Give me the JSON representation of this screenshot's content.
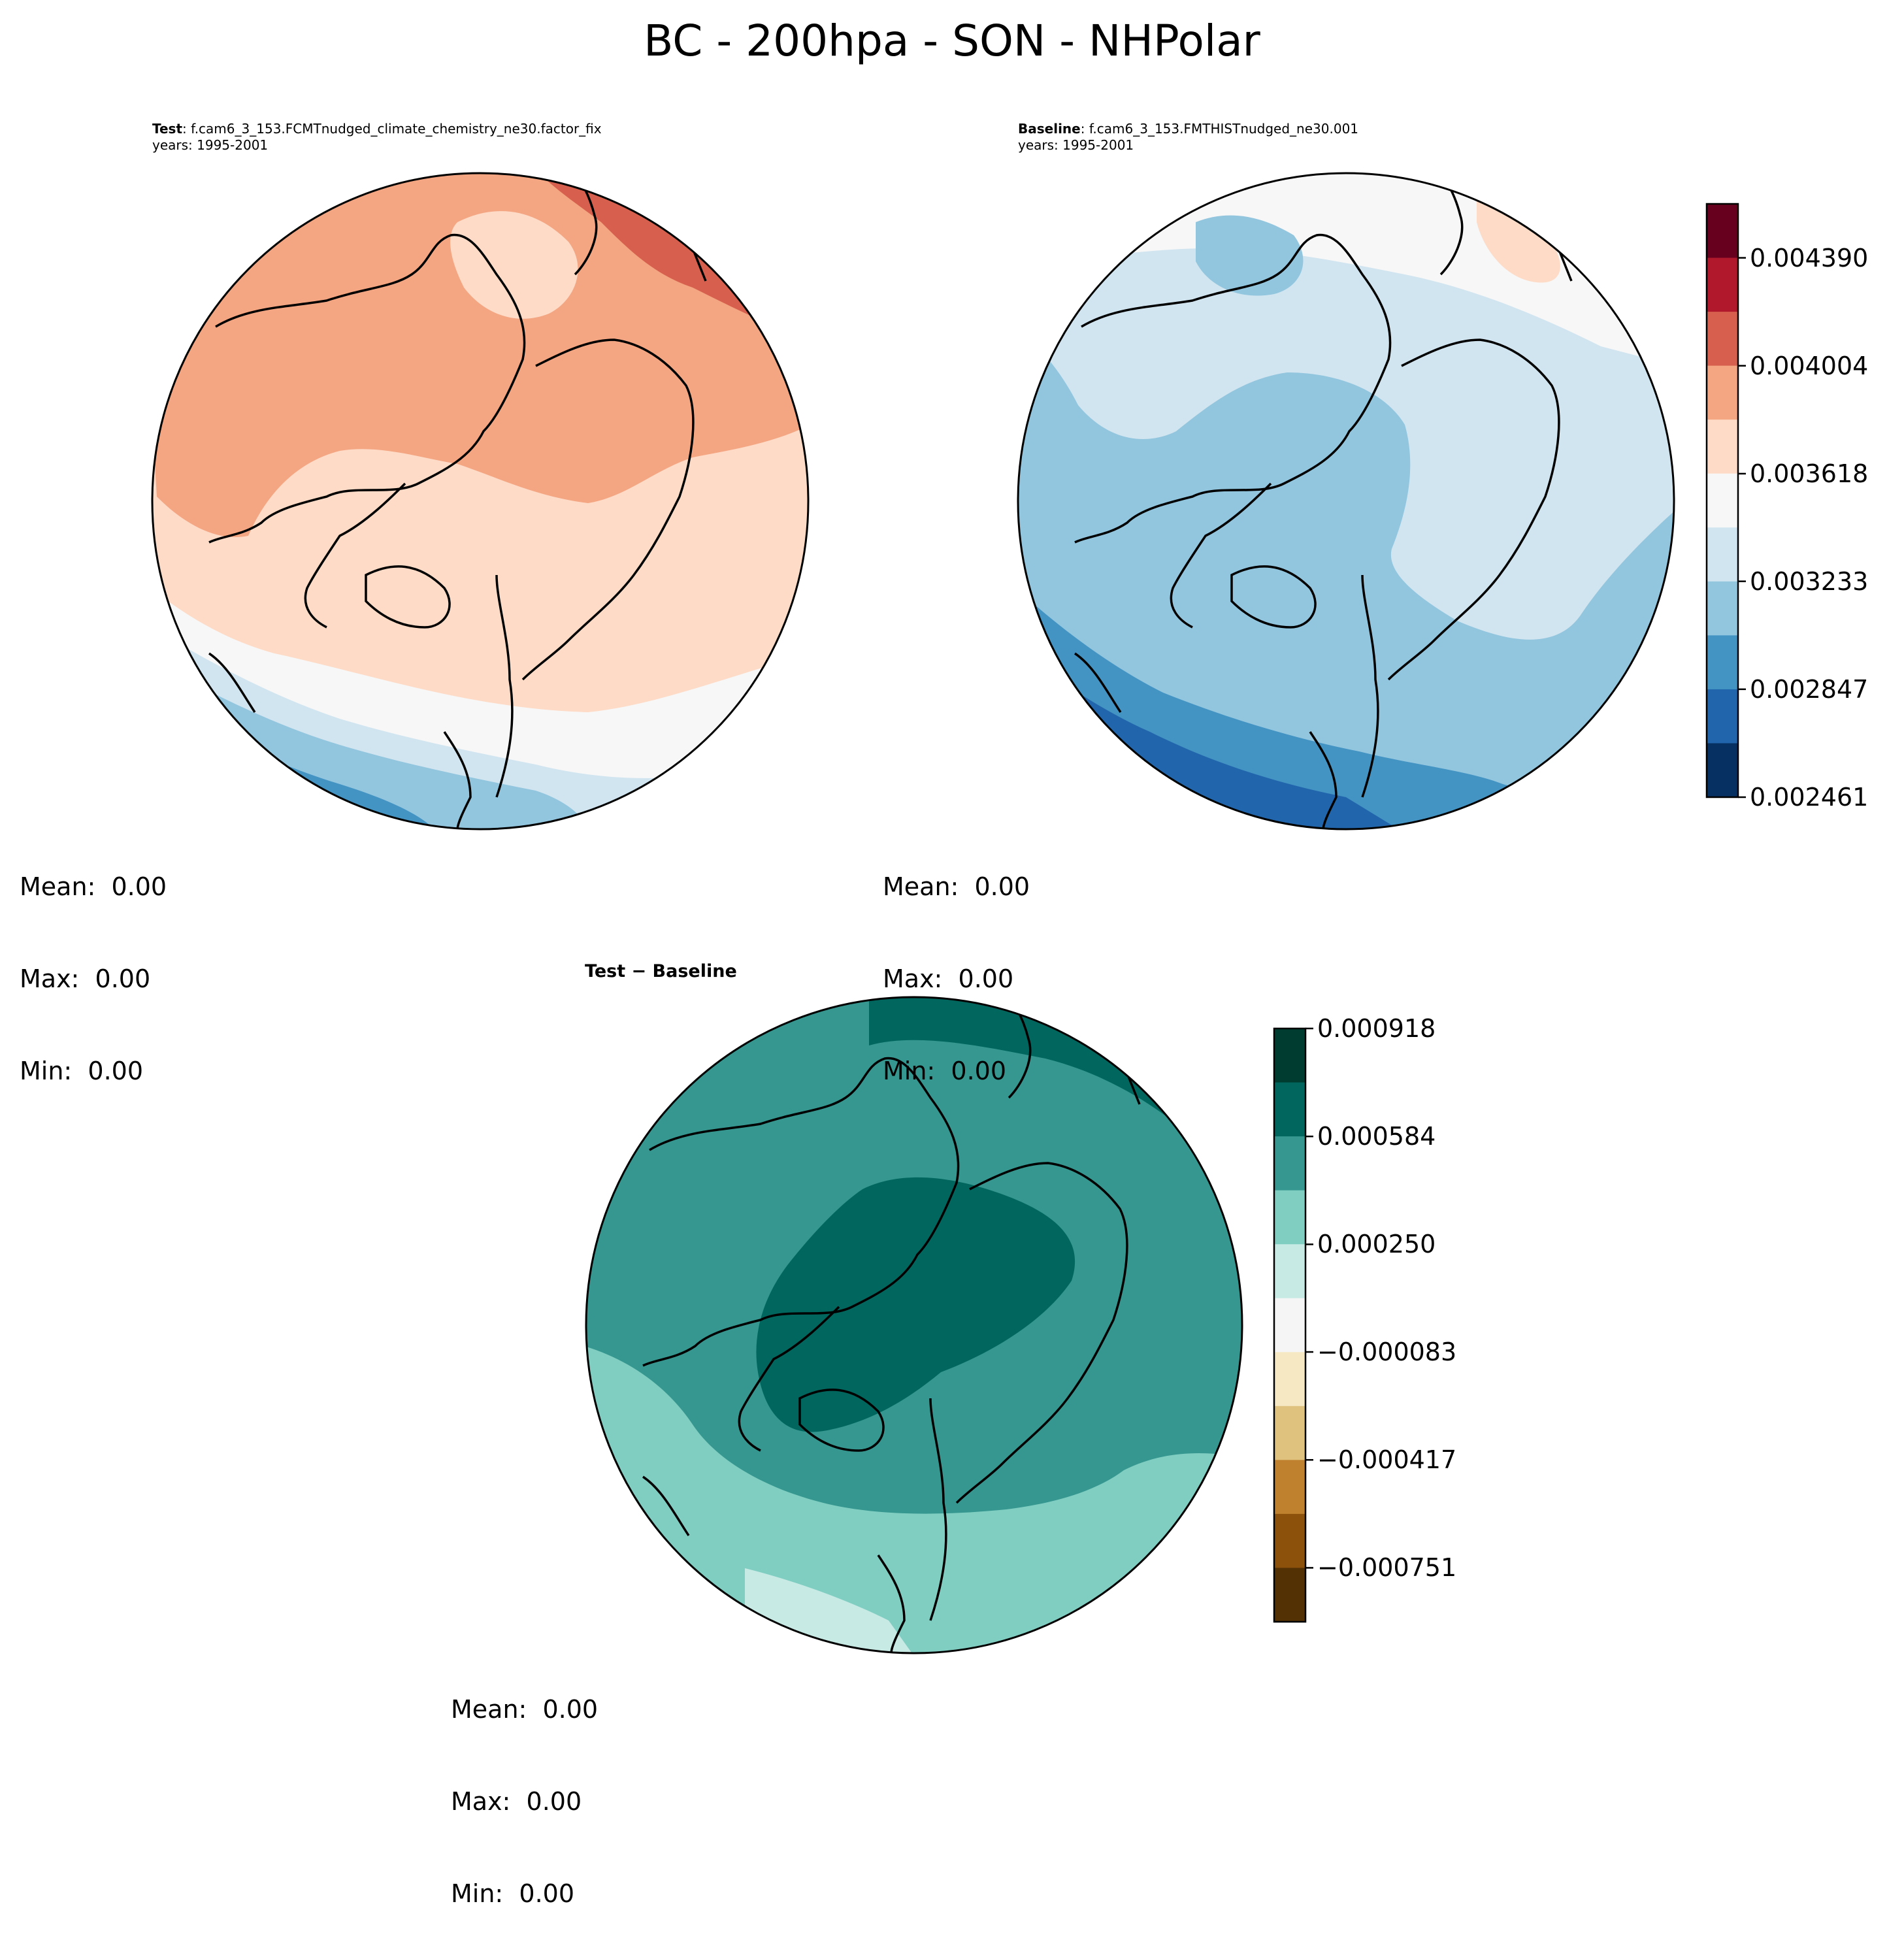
{
  "title": "BC - 200hpa - SON - NHPolar",
  "panels": [
    {
      "id": "test",
      "label": "Test",
      "case": ": f.cam6_3_153.FCMTnudged_climate_chemistry_ne30.factor_fix",
      "years": "years: 1995-2001",
      "mean": "Mean:  0.00",
      "max": "Max:  0.00",
      "min": "Min:  0.00"
    },
    {
      "id": "baseline",
      "label": "Baseline",
      "case": ": f.cam6_3_153.FMTHISTnudged_ne30.001",
      "years": "years: 1995-2001",
      "mean": "Mean:  0.00",
      "max": "Max:  0.00",
      "min": "Min:  0.00"
    },
    {
      "id": "diff",
      "label": "Test − Baseline",
      "mean": "Mean:  0.00",
      "max": "Max:  0.00",
      "min": "Min:  0.00"
    }
  ],
  "chart_data": [
    {
      "type": "heatmap",
      "projection": "north-polar-stereographic",
      "colormap": "RdBu_r",
      "colorbar": {
        "range": [
          0.002461,
          0.004583
        ],
        "ticks": [
          "0.004390",
          "0.004004",
          "0.003618",
          "0.003233",
          "0.002847",
          "0.002461"
        ],
        "tick_values": [
          0.00439,
          0.004004,
          0.003618,
          0.003233,
          0.002847,
          0.002461
        ],
        "colors": [
          "#67001f",
          "#b2182b",
          "#d6604d",
          "#f4a582",
          "#fddbc7",
          "#f7f7f7",
          "#d1e5f0",
          "#92c5de",
          "#4393c3",
          "#2166ac",
          "#053061"
        ]
      }
    },
    {
      "type": "heatmap",
      "projection": "north-polar-stereographic",
      "colormap": "BrBG",
      "colorbar": {
        "range": [
          -0.000918,
          0.000918
        ],
        "ticks": [
          "0.000918",
          "0.000584",
          "0.000250",
          "−0.000083",
          "−0.000417",
          "−0.000751"
        ],
        "tick_values": [
          0.000918,
          0.000584,
          0.00025,
          -8.3e-05,
          -0.000417,
          -0.000751
        ],
        "colors": [
          "#003c30",
          "#01665e",
          "#35978f",
          "#80cdc1",
          "#c7eae5",
          "#f5f5f5",
          "#f6e8c3",
          "#dfc27d",
          "#bf812d",
          "#8c510a",
          "#543005"
        ]
      }
    }
  ]
}
